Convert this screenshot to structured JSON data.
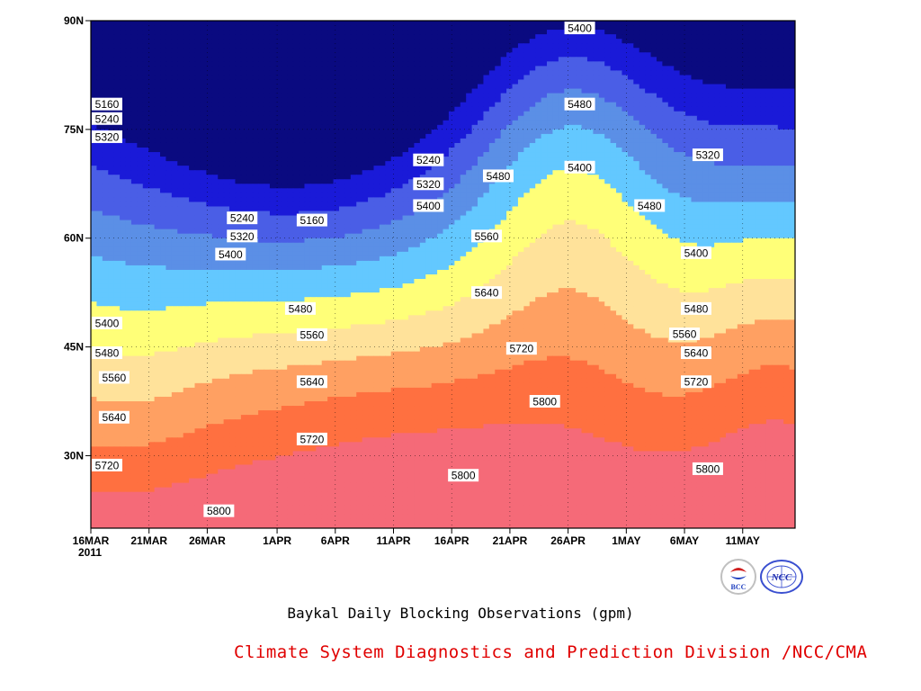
{
  "chart_data": {
    "type": "heatmap",
    "subtype": "filled-contour",
    "title": "Baykal Daily Blocking Observations (gpm)",
    "x_tick_labels": [
      "16MAR",
      "21MAR",
      "26MAR",
      "1APR",
      "6APR",
      "11APR",
      "16APR",
      "21APR",
      "26APR",
      "1MAY",
      "6MAY",
      "11MAY"
    ],
    "x_year_label": "2011",
    "y_tick_labels": [
      "30N",
      "45N",
      "60N",
      "75N",
      "90N"
    ],
    "y_ticks_deg": [
      30,
      45,
      60,
      75,
      90
    ],
    "ylim": [
      20,
      90
    ],
    "contour_levels": [
      5160,
      5240,
      5320,
      5400,
      5480,
      5560,
      5640,
      5720,
      5800
    ],
    "level_colors": [
      "#0a0a80",
      "#1a1ad8",
      "#4a5ee6",
      "#5b8fe6",
      "#63c8ff",
      "#ffff78",
      "#ffe29a",
      "#ffa062",
      "#ff7040",
      "#f56a78"
    ],
    "grid": true,
    "contour_labels": [
      {
        "text": "5160",
        "date": "17MAR",
        "lat": 78.5
      },
      {
        "text": "5240",
        "date": "17MAR",
        "lat": 76.5
      },
      {
        "text": "5320",
        "date": "17MAR",
        "lat": 74
      },
      {
        "text": "5240",
        "date": "29MAR",
        "lat": 62.8
      },
      {
        "text": "5320",
        "date": "29MAR",
        "lat": 60.3
      },
      {
        "text": "5400",
        "date": "28MAR",
        "lat": 57.8
      },
      {
        "text": "5160",
        "date": "4APR",
        "lat": 62.5
      },
      {
        "text": "5240",
        "date": "14APR",
        "lat": 70.8
      },
      {
        "text": "5320",
        "date": "14APR",
        "lat": 67.5
      },
      {
        "text": "5400",
        "date": "14APR",
        "lat": 64.5
      },
      {
        "text": "5480",
        "date": "20APR",
        "lat": 68.6
      },
      {
        "text": "5560",
        "date": "19APR",
        "lat": 60.3
      },
      {
        "text": "5640",
        "date": "19APR",
        "lat": 52.5
      },
      {
        "text": "5720",
        "date": "22APR",
        "lat": 44.8
      },
      {
        "text": "5800",
        "date": "24APR",
        "lat": 37.5
      },
      {
        "text": "5800",
        "date": "17APR",
        "lat": 27.3
      },
      {
        "text": "5400",
        "date": "27APR",
        "lat": 89
      },
      {
        "text": "5480",
        "date": "27APR",
        "lat": 78.5
      },
      {
        "text": "5400",
        "date": "27APR",
        "lat": 69.8
      },
      {
        "text": "5480",
        "date": "3MAY",
        "lat": 64.5
      },
      {
        "text": "5320",
        "date": "8MAY",
        "lat": 71.5
      },
      {
        "text": "5400",
        "date": "7MAY",
        "lat": 58
      },
      {
        "text": "5480",
        "date": "7MAY",
        "lat": 50.3
      },
      {
        "text": "5560",
        "date": "6MAY",
        "lat": 46.8
      },
      {
        "text": "5640",
        "date": "7MAY",
        "lat": 44.2
      },
      {
        "text": "5720",
        "date": "7MAY",
        "lat": 40.2
      },
      {
        "text": "5800",
        "date": "8MAY",
        "lat": 28.2
      },
      {
        "text": "5480",
        "date": "3APR",
        "lat": 50.3
      },
      {
        "text": "5560",
        "date": "4APR",
        "lat": 46.7
      },
      {
        "text": "5640",
        "date": "4APR",
        "lat": 40.2
      },
      {
        "text": "5720",
        "date": "4APR",
        "lat": 32.3
      },
      {
        "text": "5800",
        "date": "27MAR",
        "lat": 22.4
      },
      {
        "text": "5400",
        "date": "16MAR",
        "lat": 48.3
      },
      {
        "text": "5480",
        "date": "17MAR",
        "lat": 44.2
      },
      {
        "text": "5560",
        "date": "18MAR",
        "lat": 40.8
      },
      {
        "text": "5640",
        "date": "18MAR",
        "lat": 35.3
      },
      {
        "text": "5720",
        "date": "17MAR",
        "lat": 28.7
      }
    ]
  },
  "caption": {
    "main": "Baykal Daily Blocking Observations (gpm)",
    "org": "Climate System Diagnostics and Prediction Division /NCC/CMA"
  },
  "logos": {
    "left_text": "BCC",
    "right_text": "NCC"
  }
}
